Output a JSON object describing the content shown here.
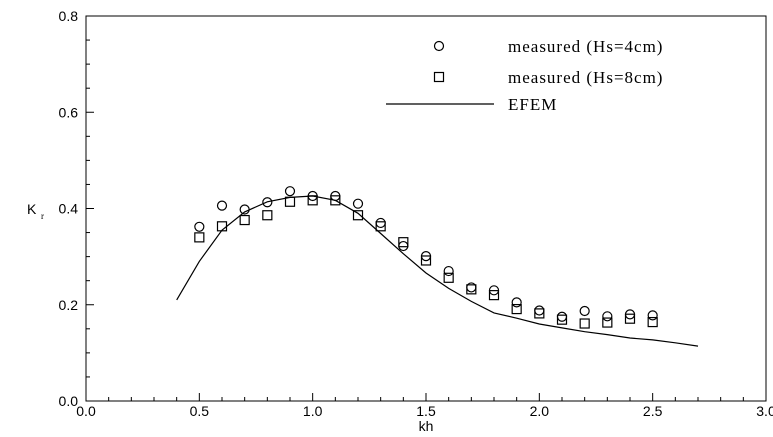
{
  "chart_data": {
    "type": "scatter",
    "title": "",
    "xlabel": "kh",
    "ylabel": "K",
    "ylabel_subscript": "r",
    "xlim": [
      0.0,
      3.0
    ],
    "ylim": [
      0.0,
      0.8
    ],
    "xticks": [
      "0.0",
      "0.5",
      "1.0",
      "1.5",
      "2.0",
      "2.5",
      "3.0"
    ],
    "yticks": [
      "0.0",
      "0.2",
      "0.4",
      "0.6",
      "0.8"
    ],
    "grid": false,
    "legend_position": "top-right",
    "series": [
      {
        "name": "measured (Hs=4cm)",
        "marker": "circle",
        "x": [
          0.5,
          0.6,
          0.7,
          0.8,
          0.9,
          1.0,
          1.1,
          1.2,
          1.3,
          1.4,
          1.5,
          1.6,
          1.7,
          1.8,
          1.9,
          2.0,
          2.1,
          2.2,
          2.3,
          2.4,
          2.5
        ],
        "y": [
          0.362,
          0.406,
          0.398,
          0.413,
          0.436,
          0.426,
          0.426,
          0.41,
          0.37,
          0.322,
          0.301,
          0.27,
          0.236,
          0.23,
          0.205,
          0.188,
          0.175,
          0.187,
          0.176,
          0.18,
          0.178
        ]
      },
      {
        "name": "measured (Hs=8cm)",
        "marker": "square",
        "x": [
          0.5,
          0.6,
          0.7,
          0.8,
          0.9,
          1.0,
          1.1,
          1.2,
          1.3,
          1.4,
          1.5,
          1.6,
          1.7,
          1.8,
          1.9,
          2.0,
          2.1,
          2.2,
          2.3,
          2.4,
          2.5
        ],
        "y": [
          0.34,
          0.363,
          0.376,
          0.386,
          0.414,
          0.417,
          0.417,
          0.386,
          0.363,
          0.33,
          0.292,
          0.256,
          0.232,
          0.22,
          0.191,
          0.182,
          0.169,
          0.161,
          0.163,
          0.171,
          0.164
        ]
      },
      {
        "name": "EFEM",
        "marker": "line",
        "x": [
          0.4,
          0.5,
          0.6,
          0.7,
          0.8,
          0.9,
          1.0,
          1.1,
          1.2,
          1.3,
          1.4,
          1.5,
          1.6,
          1.7,
          1.8,
          1.9,
          2.0,
          2.1,
          2.2,
          2.3,
          2.4,
          2.5,
          2.6,
          2.7
        ],
        "y": [
          0.21,
          0.29,
          0.355,
          0.393,
          0.414,
          0.423,
          0.426,
          0.417,
          0.39,
          0.348,
          0.306,
          0.266,
          0.234,
          0.207,
          0.183,
          0.172,
          0.16,
          0.152,
          0.144,
          0.138,
          0.131,
          0.127,
          0.121,
          0.114
        ]
      }
    ]
  }
}
